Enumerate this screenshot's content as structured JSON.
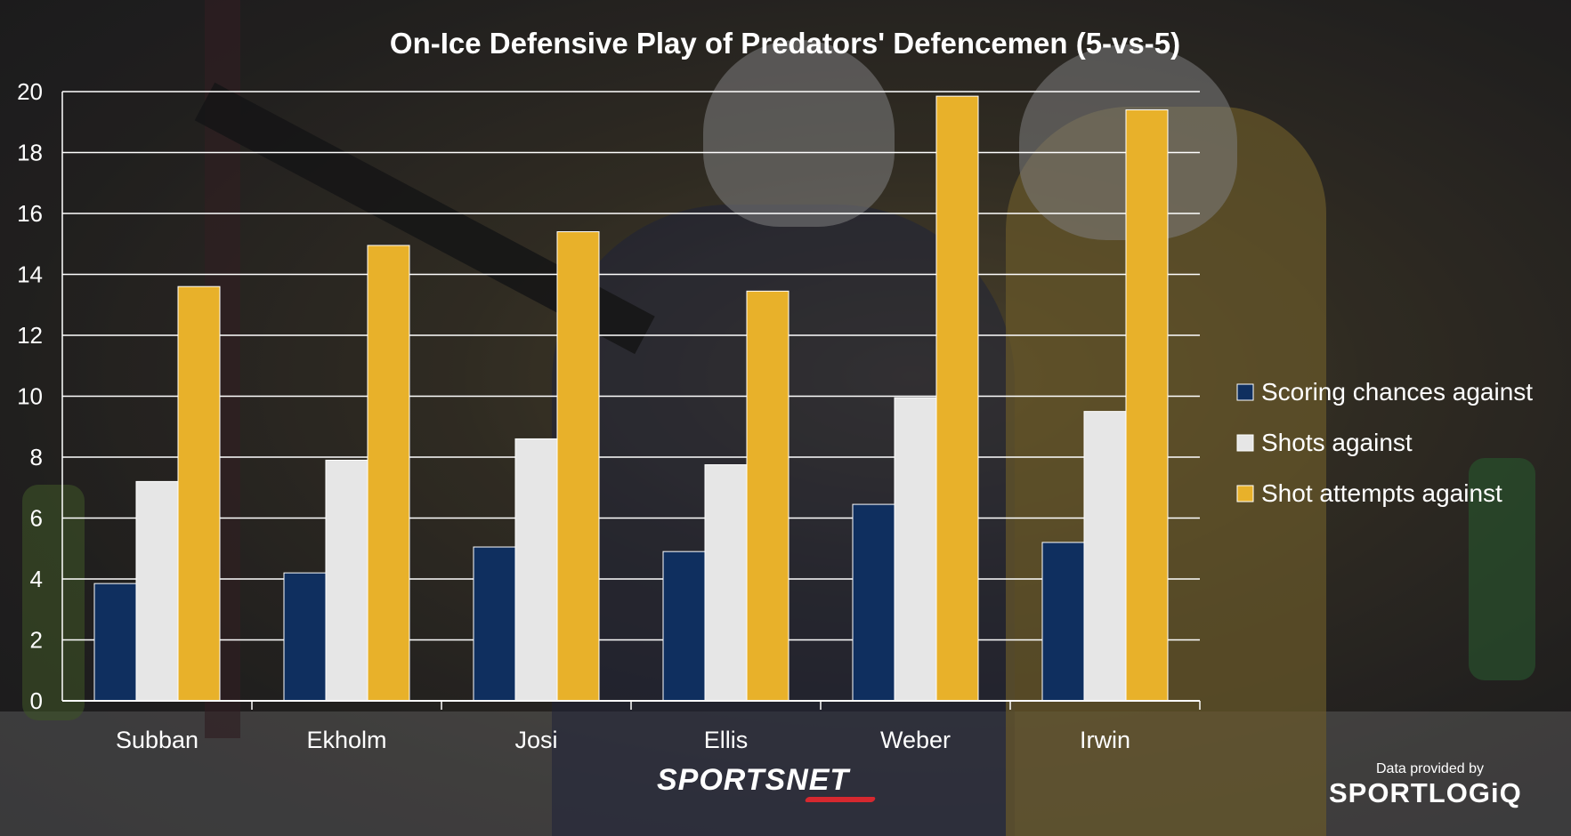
{
  "chart_data": {
    "type": "bar",
    "title": "On-Ice Defensive Play of Predators' Defencemen (5-vs-5)",
    "categories": [
      "Subban",
      "Ekholm",
      "Josi",
      "Ellis",
      "Weber",
      "Irwin"
    ],
    "series": [
      {
        "name": "Scoring chances against",
        "color": "#0f2f5f",
        "values": [
          3.85,
          4.2,
          5.05,
          4.9,
          6.45,
          5.2
        ]
      },
      {
        "name": "Shots against",
        "color": "#e6e6e6",
        "values": [
          7.2,
          7.9,
          8.6,
          7.75,
          9.95,
          9.5
        ]
      },
      {
        "name": "Shot attempts against",
        "color": "#e8b12a",
        "values": [
          13.6,
          14.95,
          15.4,
          13.45,
          19.85,
          19.4
        ]
      }
    ],
    "ylim": [
      0,
      20
    ],
    "yticks": [
      0,
      2,
      4,
      6,
      8,
      10,
      12,
      14,
      16,
      18,
      20
    ],
    "grid": true,
    "legend_position": "right"
  },
  "branding": {
    "network": "SPORTSNET",
    "provided_by": "Data provided by",
    "provider": "SPORTLOGiQ"
  }
}
